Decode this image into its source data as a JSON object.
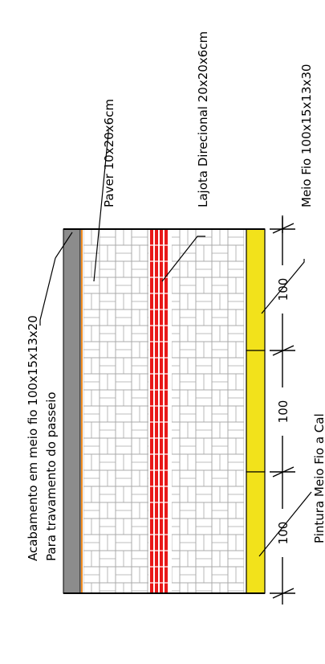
{
  "labels": {
    "edge_finish_line1": "Acabamento em meio fio 100x15x13x20",
    "edge_finish_line2": "Para travamento do passeio",
    "paver": "Paver 10x20x6cm",
    "tactile": "Lajota Direcional 20x20x6cm",
    "curb": "Meio Fio 100x15x13x30",
    "paint": "Pintura Meio Fio a Cal"
  },
  "dimensions": [
    "100",
    "100",
    "100"
  ],
  "colors": {
    "edge_strip": "#8c8c8c",
    "edge_orange": "#f08a1e",
    "paver_line": "#a8a8a8",
    "tactile": "#e81818",
    "curb": "#f2e21b",
    "outline": "#000000"
  }
}
